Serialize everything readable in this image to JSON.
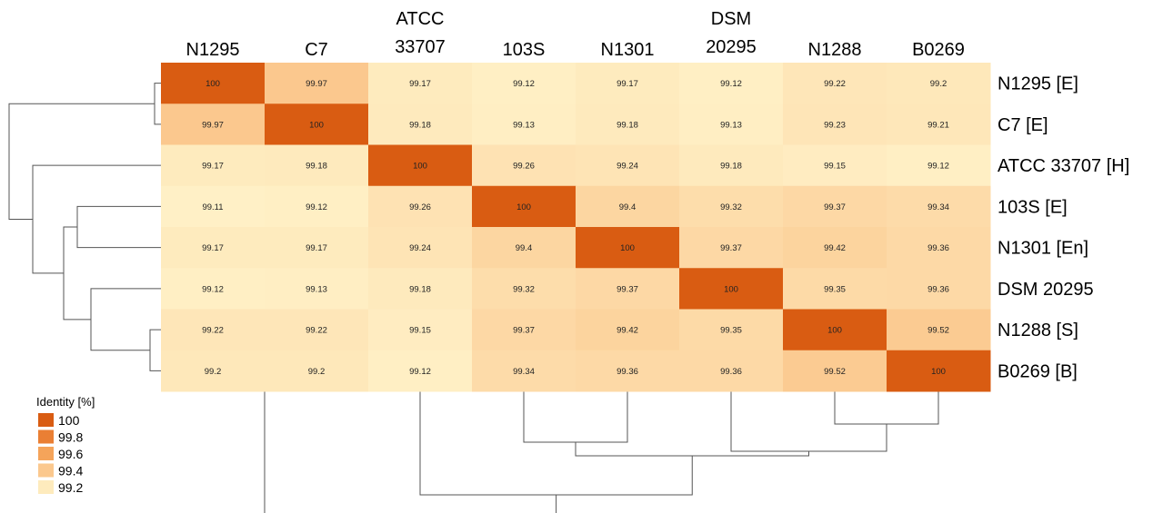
{
  "chart_data": {
    "type": "heatmap",
    "columns": [
      "N1295",
      "C7",
      "ATCC 33707",
      "103S",
      "N1301",
      "DSM 20295",
      "N1288",
      "B0269"
    ],
    "rows": [
      "N1295 [E]",
      "C7 [E]",
      "ATCC 33707 [H]",
      "103S [E]",
      "N1301 [En]",
      "DSM 20295",
      "N1288 [S]",
      "B0269 [B]"
    ],
    "values": [
      [
        "100",
        "99.97",
        "99.17",
        "99.12",
        "99.17",
        "99.12",
        "99.22",
        "99.2"
      ],
      [
        "99.97",
        "100",
        "99.18",
        "99.13",
        "99.18",
        "99.13",
        "99.23",
        "99.21"
      ],
      [
        "99.17",
        "99.18",
        "100",
        "99.26",
        "99.24",
        "99.18",
        "99.15",
        "99.12"
      ],
      [
        "99.11",
        "99.12",
        "99.26",
        "100",
        "99.4",
        "99.32",
        "99.37",
        "99.34"
      ],
      [
        "99.17",
        "99.17",
        "99.24",
        "99.4",
        "100",
        "99.37",
        "99.42",
        "99.36"
      ],
      [
        "99.12",
        "99.13",
        "99.18",
        "99.32",
        "99.37",
        "100",
        "99.35",
        "99.36"
      ],
      [
        "99.22",
        "99.22",
        "99.15",
        "99.37",
        "99.42",
        "99.35",
        "100",
        "99.52"
      ],
      [
        "99.2",
        "99.2",
        "99.12",
        "99.34",
        "99.36",
        "99.36",
        "99.52",
        "100"
      ]
    ],
    "color_scale": {
      "min": 99.1,
      "max": 100,
      "low_color": "#fff1c7",
      "mid_color": "#fbc88e",
      "high_color": "#d95c12"
    },
    "legend": {
      "title": "Identity [%]",
      "position": "bottom-left",
      "entries": [
        {
          "label": "100",
          "color": "#d95c12"
        },
        {
          "label": "99.8",
          "color": "#ea7f34"
        },
        {
          "label": "99.6",
          "color": "#f5a45a"
        },
        {
          "label": "99.4",
          "color": "#fbc88e"
        },
        {
          "label": "99.2",
          "color": "#feebbd"
        }
      ]
    },
    "dendrograms": [
      "left",
      "bottom"
    ]
  }
}
